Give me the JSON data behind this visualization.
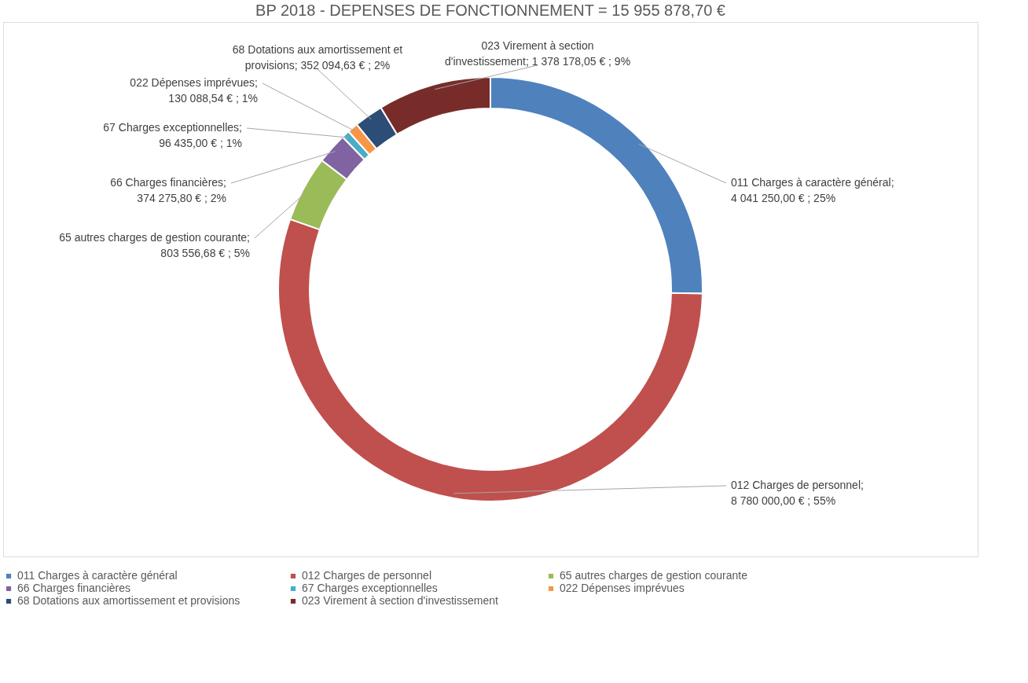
{
  "chart_data": {
    "type": "donut",
    "title": "BP 2018 - DEPENSES DE FONCTIONNEMENT = 15 955 878,70 €",
    "categories": [
      "011 Charges à caractère général",
      "012 Charges de personnel",
      "65 autres charges de gestion courante",
      "66 Charges financières",
      "67 Charges exceptionnelles",
      "022 Dépenses imprévues",
      "68 Dotations aux amortissement et provisions",
      "023 Virement à section d'investissement"
    ],
    "values": [
      4041250.0,
      8780000.0,
      803556.68,
      374275.8,
      96435.0,
      130088.54,
      352094.63,
      1378178.05
    ],
    "colors": [
      "#4f81bd",
      "#c0504d",
      "#9bbb59",
      "#8064a2",
      "#4bacc6",
      "#f79646",
      "#2c4d75",
      "#772c2a"
    ],
    "value_labels": [
      "011 Charges à caractère général;\n4 041 250,00 € ; 25%",
      "012 Charges de personnel;\n8 780 000,00 € ; 55%",
      "65 autres charges de gestion courante;\n803 556,68 € ; 5%",
      "66 Charges financières;\n374 275,80 € ; 2%",
      "67 Charges exceptionnelles;\n96 435,00 € ; 1%",
      "022 Dépenses imprévues;\n130 088,54 € ; 1%",
      "68 Dotations aux amortissement et\nprovisions;  352 094,63 € ; 2%",
      "023 Virement à section\nd'investissement;  1 378 178,05 € ; 9%"
    ],
    "legend": "bottom"
  }
}
